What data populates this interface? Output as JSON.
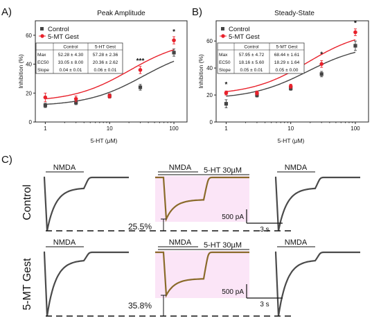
{
  "panels": [
    {
      "letter": "A)",
      "title": "Peak Amplitude",
      "xlabel": "5-HT (μM)",
      "ylabel": "Inhibition (%)",
      "legend": [
        "Control",
        "5-MT Gest"
      ],
      "stats": {
        "headers": [
          "",
          "Control",
          "5-HT Gest"
        ],
        "rows": [
          [
            "Max",
            "52.28 ± 4.30",
            "57.28 ± 2.36"
          ],
          [
            "EC50",
            "33.05 ± 8.00",
            "20.36 ± 2.62"
          ],
          [
            "Slope",
            "0.04 ± 0.01",
            "0.06 ± 0.01"
          ]
        ]
      },
      "sig": [
        {
          "x": 30,
          "y": 36.5,
          "text": "***"
        },
        {
          "x": 100,
          "y": 56.5,
          "text": "*"
        }
      ]
    },
    {
      "letter": "B)",
      "title": "Steady-State",
      "xlabel": "5-HT (μM)",
      "ylabel": "Inhibition (%)",
      "legend": [
        "Control",
        "5-MT Gest"
      ],
      "stats": {
        "headers": [
          "",
          "Control",
          "5-MT Gest"
        ],
        "rows": [
          [
            "Max",
            "57.95 ± 4.72",
            "68.44 ± 1.61"
          ],
          [
            "EC50",
            "18.16 ± 5.60",
            "18.29 ± 1.64"
          ],
          [
            "Slope",
            "0.05 ± 0.01",
            "0.05 ± 0.00"
          ]
        ]
      },
      "sig": [
        {
          "x": 1,
          "y": 21.5,
          "text": "*"
        },
        {
          "x": 30,
          "y": 44,
          "text": "*"
        },
        {
          "x": 100,
          "y": 67,
          "text": "*"
        }
      ]
    }
  ],
  "chart_data": [
    {
      "type": "scatter",
      "title": "Peak Amplitude",
      "xlabel": "5-HT (μM)",
      "ylabel": "Inhibition (%)",
      "xscale": "log",
      "xlim": [
        0.7,
        160
      ],
      "ylim": [
        0,
        70
      ],
      "xticks": [
        1,
        10,
        100
      ],
      "xticklabels": [
        "1",
        "10",
        "100"
      ],
      "yticks": [
        0,
        20,
        40,
        60
      ],
      "grid": false,
      "legend": "top-left",
      "x": [
        1,
        3,
        10,
        30,
        100
      ],
      "series": [
        {
          "name": "Control",
          "color": "#444444",
          "marker": "square",
          "values": [
            11.5,
            13.5,
            18,
            24,
            48
          ],
          "err": [
            1.5,
            1.5,
            1.5,
            2,
            2.5
          ],
          "fit": {
            "bottom": 11,
            "top": 52.28,
            "ec50": 33.05
          }
        },
        {
          "name": "5-MT Gest",
          "color": "#e8212b",
          "marker": "circle",
          "values": [
            17,
            16,
            18,
            36,
            56.5
          ],
          "err": [
            3,
            2,
            1.5,
            2.5,
            2.5
          ],
          "fit": {
            "bottom": 14,
            "top": 57.28,
            "ec50": 20.36
          }
        }
      ]
    },
    {
      "type": "scatter",
      "title": "Steady-State",
      "xlabel": "5-HT (μM)",
      "ylabel": "Inhibition (%)",
      "xscale": "log",
      "xlim": [
        0.7,
        160
      ],
      "ylim": [
        0,
        75
      ],
      "xticks": [
        1,
        10,
        100
      ],
      "xticklabels": [
        "1",
        "10",
        "100"
      ],
      "yticks": [
        0,
        20,
        40,
        60
      ],
      "grid": false,
      "legend": "top-left",
      "x": [
        1,
        3,
        10,
        30,
        100
      ],
      "series": [
        {
          "name": "Control",
          "color": "#444444",
          "marker": "square",
          "values": [
            13.5,
            20,
            25,
            35.5,
            56.5
          ],
          "err": [
            3,
            1.5,
            1.5,
            2,
            3.5
          ],
          "fit": {
            "bottom": 17,
            "top": 57.95,
            "ec50": 18.16
          }
        },
        {
          "name": "5-MT Gest",
          "color": "#e8212b",
          "marker": "circle",
          "values": [
            21.5,
            21.5,
            26.5,
            43,
            66.5
          ],
          "err": [
            1.5,
            1.5,
            1.5,
            2.5,
            2.5
          ],
          "fit": {
            "bottom": 20,
            "top": 68.44,
            "ec50": 18.29
          }
        }
      ]
    }
  ],
  "traces": {
    "letter": "C)",
    "rows": [
      {
        "label": "Control",
        "percent": "25.5%"
      },
      {
        "label": "5-MT Gest",
        "percent": "35.8%"
      }
    ],
    "nmda_label": "NMDA",
    "drug_label": "5-HT 30µM",
    "scale_current": "500 pA",
    "scale_time": "3 s",
    "trace_color": "#4a4a4a",
    "drug_trace_color": "#8a6a2a",
    "drug_highlight": "#f8d0f0"
  }
}
